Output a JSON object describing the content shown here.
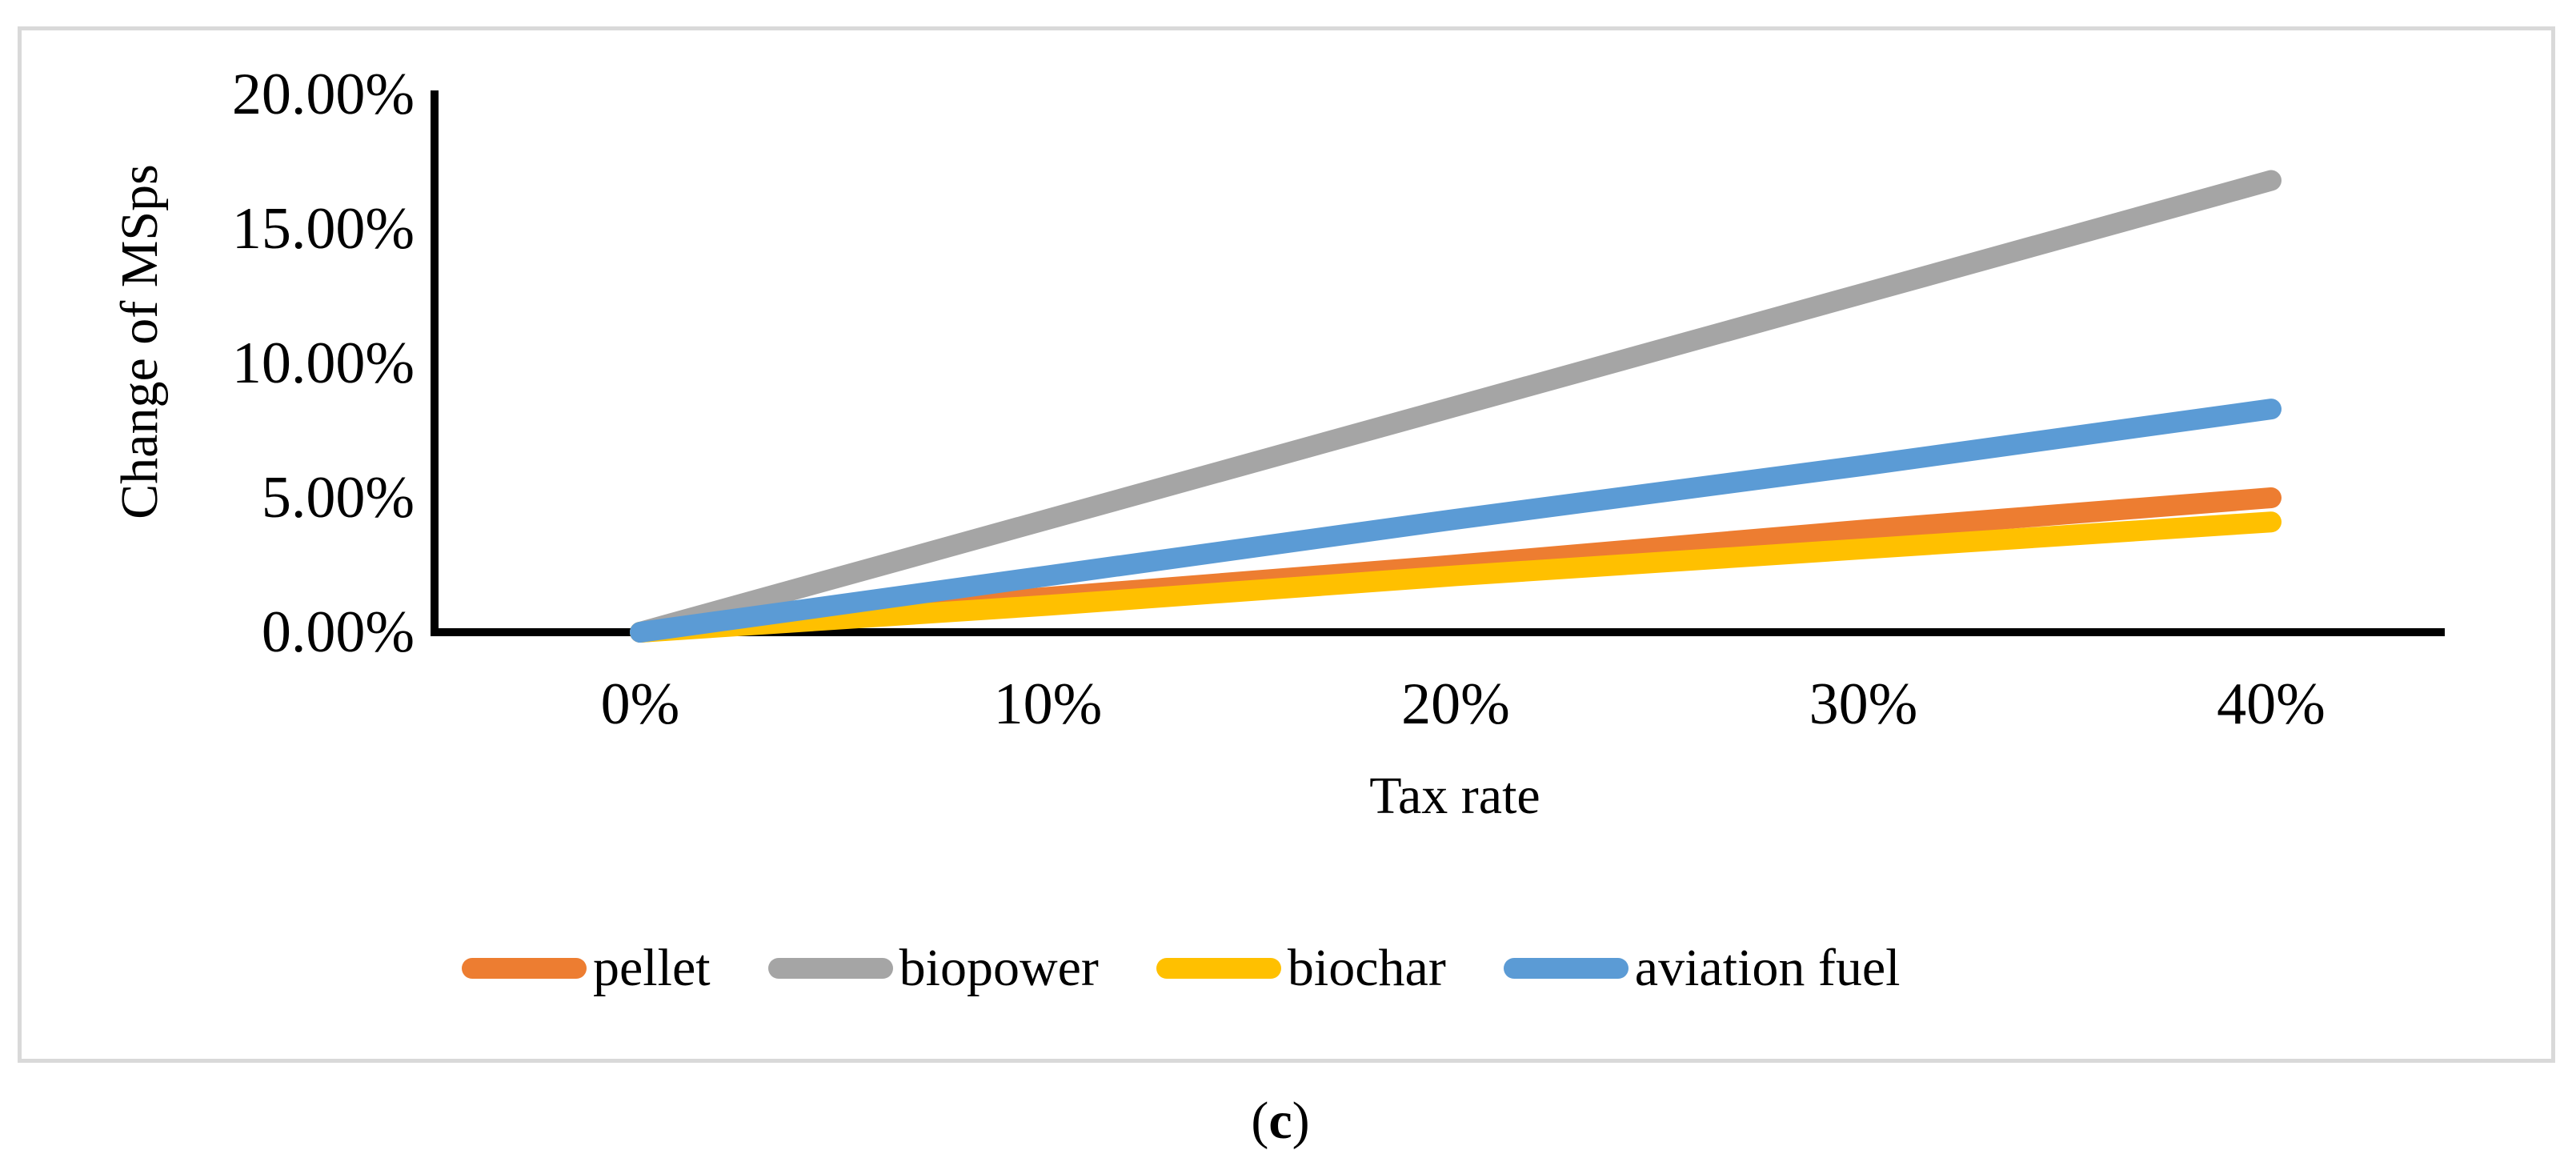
{
  "figure": {
    "caption": {
      "open": "(",
      "letter": "c",
      "close": ")"
    }
  },
  "chart_data": {
    "type": "line",
    "title": "",
    "xlabel": "Tax rate",
    "ylabel": "Change of MSps",
    "categories": [
      "0%",
      "10%",
      "20%",
      "30%",
      "40%"
    ],
    "x_values_pct": [
      0,
      10,
      20,
      30,
      40
    ],
    "ylim": [
      0,
      20
    ],
    "y_tick_values": [
      0,
      5,
      10,
      15,
      20
    ],
    "y_tick_labels": [
      "0.00%",
      "5.00%",
      "10.00%",
      "15.00%",
      "20.00%"
    ],
    "grid": "off",
    "legend_position": "bottom",
    "axis_color": "#000000",
    "frame_color": "#D9D9D9",
    "series": [
      {
        "name": "pellet",
        "color": "#ED7D31",
        "values": [
          0,
          1.3,
          2.5,
          3.8,
          5.0
        ],
        "end_value_pct": 5.0
      },
      {
        "name": "biopower",
        "color": "#A5A5A5",
        "values": [
          0,
          4.2,
          8.4,
          12.6,
          16.8
        ],
        "end_value_pct": 16.8
      },
      {
        "name": "biochar",
        "color": "#FFC000",
        "values": [
          0,
          1.0,
          2.1,
          3.1,
          4.1
        ],
        "end_value_pct": 4.1
      },
      {
        "name": "aviation fuel",
        "color": "#5B9BD5",
        "values": [
          0,
          2.1,
          4.2,
          6.2,
          8.3
        ],
        "end_value_pct": 8.3
      }
    ]
  }
}
